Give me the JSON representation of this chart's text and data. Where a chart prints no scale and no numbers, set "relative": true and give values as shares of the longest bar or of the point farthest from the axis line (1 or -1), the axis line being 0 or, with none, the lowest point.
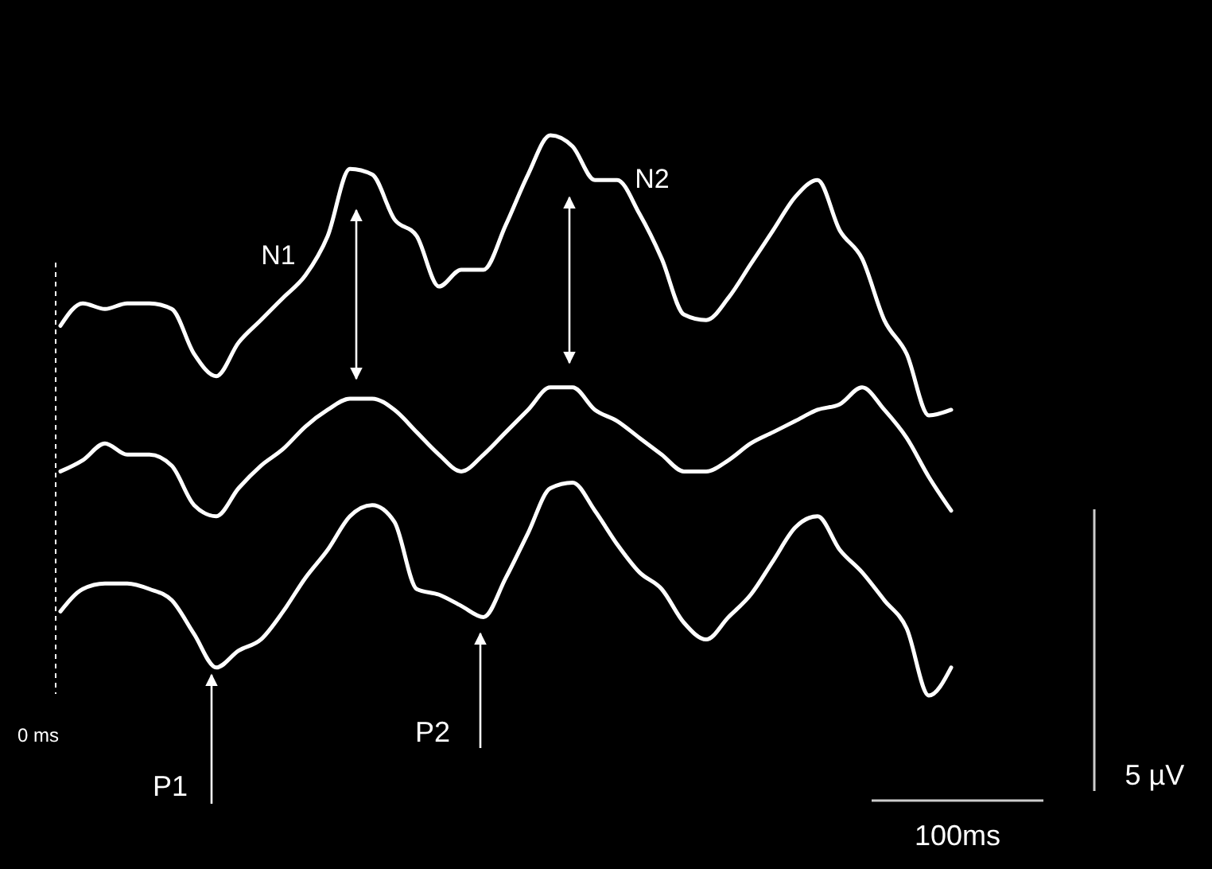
{
  "chart_data": {
    "type": "line",
    "relative": true,
    "categories": [
      null,
      null,
      null,
      null,
      null,
      null,
      null,
      null,
      null,
      null,
      null,
      null,
      null,
      null,
      null,
      null,
      null,
      null,
      null,
      null,
      null,
      null,
      null,
      null,
      null,
      null,
      null,
      null,
      null,
      null,
      null,
      null,
      null,
      null,
      null,
      null,
      null,
      null,
      null,
      null,
      null
    ],
    "series": [
      {
        "color": "#ffffff",
        "values": [
          0.66,
          0.7,
          0.69,
          0.7,
          0.7,
          0.69,
          0.61,
          0.57,
          0.63,
          0.67,
          0.71,
          0.75,
          0.82,
          0.94,
          0.93,
          0.85,
          0.82,
          0.73,
          0.76,
          0.76,
          0.84,
          0.93,
          1.0,
          0.98,
          0.92,
          0.92,
          0.86,
          0.78,
          0.68,
          0.67,
          0.71,
          0.77,
          0.83,
          0.89,
          0.92,
          0.83,
          0.78,
          0.67,
          0.61,
          0.5,
          0.51
        ]
      },
      {
        "color": "#ffffff",
        "values": [
          0.4,
          0.42,
          0.45,
          0.43,
          0.43,
          0.41,
          0.34,
          0.32,
          0.37,
          0.41,
          0.44,
          0.48,
          0.51,
          0.53,
          0.53,
          0.51,
          0.47,
          0.43,
          0.4,
          0.43,
          0.47,
          0.51,
          0.55,
          0.55,
          0.51,
          0.49,
          0.46,
          0.43,
          0.4,
          0.4,
          0.42,
          0.45,
          0.47,
          0.49,
          0.51,
          0.52,
          0.55,
          0.51,
          0.46,
          0.39,
          0.33
        ]
      },
      {
        "color": "#ffffff",
        "values": [
          0.15,
          0.19,
          0.2,
          0.2,
          0.19,
          0.17,
          0.11,
          0.05,
          0.08,
          0.1,
          0.15,
          0.21,
          0.26,
          0.32,
          0.34,
          0.31,
          0.19,
          0.18,
          0.16,
          0.14,
          0.21,
          0.29,
          0.37,
          0.38,
          0.33,
          0.27,
          0.22,
          0.19,
          0.13,
          0.1,
          0.14,
          0.18,
          0.24,
          0.3,
          0.32,
          0.26,
          0.22,
          0.17,
          0.12,
          0.0,
          0.05
        ]
      }
    ],
    "annotations": [
      "N1",
      "N2",
      "P1",
      "P2",
      "0 ms",
      "100ms",
      "5 µV"
    ]
  }
}
